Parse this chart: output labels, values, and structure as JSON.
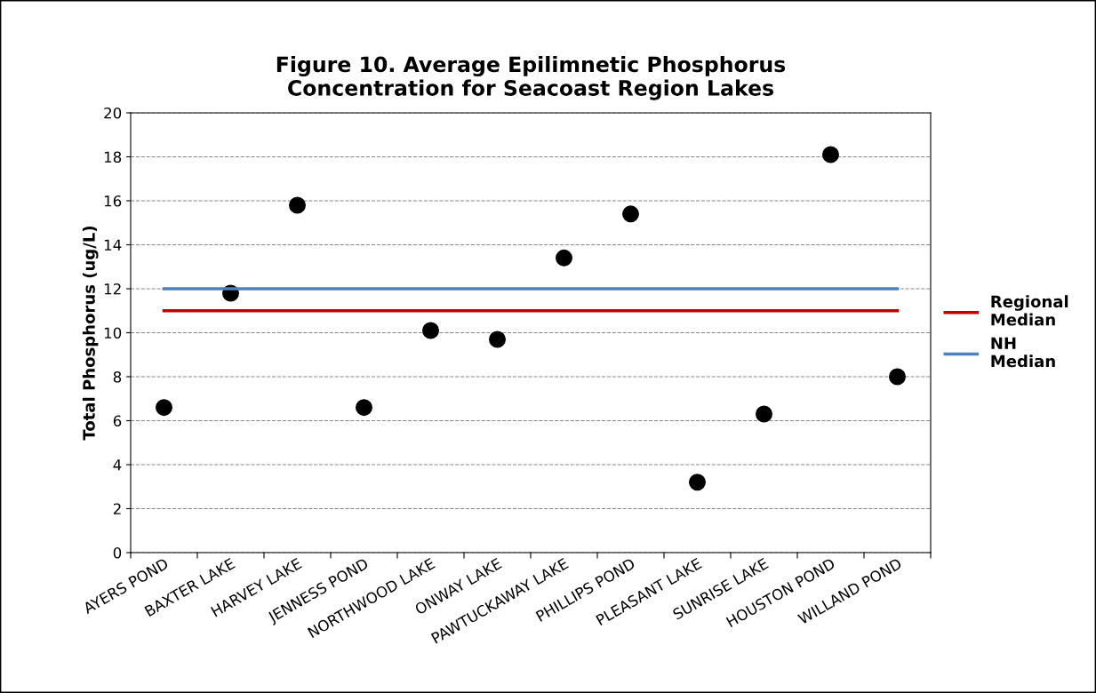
{
  "chart_data": {
    "type": "scatter",
    "title": "Figure 10. Average Epilimnetic Phosphorus\nConcentration for Seacoast Region Lakes",
    "ylabel": "Total Phosphorus (ug/L)",
    "categories": [
      "AYERS POND",
      "BAXTER LAKE",
      "HARVEY LAKE",
      "JENNESS POND",
      "NORTHWOOD LAKE",
      "ONWAY LAKE",
      "PAWTUCKAWAY LAKE",
      "PHILLIPS POND",
      "PLEASANT LAKE",
      "SUNRISE LAKE",
      "HOUSTON POND",
      "WILLAND POND"
    ],
    "series": [
      {
        "color": "#000000",
        "marker": "circle",
        "values": [
          6.6,
          11.8,
          15.8,
          6.6,
          10.1,
          9.7,
          13.4,
          15.4,
          3.2,
          6.3,
          18.1,
          8.0
        ]
      },
      {
        "type": "line",
        "name": "Regional\nMedian",
        "color": "#c00000",
        "marker": "none",
        "values": [
          11,
          11,
          11,
          11,
          11,
          11,
          11,
          11,
          11,
          11,
          11,
          11
        ]
      },
      {
        "type": "line",
        "name": "NH\nMedian",
        "color": "#4f81bd",
        "marker": "none",
        "values": [
          12,
          12,
          12,
          12,
          12,
          12,
          12,
          12,
          12,
          12,
          12,
          12
        ]
      }
    ],
    "ylim": [
      0,
      20
    ],
    "yticks": [
      0,
      2,
      4,
      6,
      8,
      10,
      12,
      14,
      16,
      18,
      20
    ],
    "grid": "y",
    "legend": "right"
  }
}
